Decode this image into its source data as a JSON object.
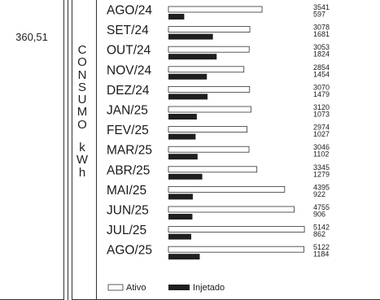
{
  "left_value": "360,51",
  "side_label": {
    "word1": [
      "C",
      "O",
      "N",
      "S",
      "U",
      "M",
      "O"
    ],
    "word2": [
      "k",
      "W",
      "h"
    ]
  },
  "chart_data": {
    "type": "bar",
    "orientation": "horizontal",
    "categories": [
      "AGO/24",
      "SET/24",
      "OUT/24",
      "NOV/24",
      "DEZ/24",
      "JAN/25",
      "FEV/25",
      "MAR/25",
      "ABR/25",
      "MAI/25",
      "JUN/25",
      "JUL/25",
      "AGO/25"
    ],
    "series": [
      {
        "name": "Ativo",
        "color": "#ffffff",
        "values": [
          3541,
          3078,
          3053,
          2854,
          3070,
          3120,
          2974,
          3046,
          3345,
          4395,
          4755,
          5142,
          5122
        ]
      },
      {
        "name": "Injetado",
        "color": "#1f1f1f",
        "values": [
          597,
          1681,
          1824,
          1454,
          1479,
          1073,
          1027,
          1102,
          1279,
          922,
          906,
          862,
          1184
        ]
      }
    ],
    "legend_position": "bottom",
    "grid": false
  }
}
